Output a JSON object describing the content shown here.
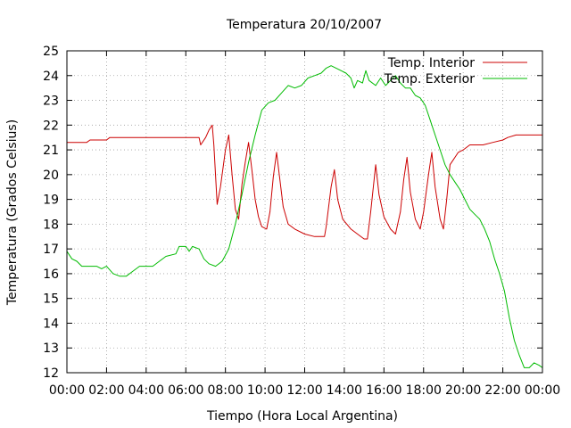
{
  "chart_data": {
    "type": "line",
    "title": "Temperatura 20/10/2007",
    "xlabel": "Tiempo (Hora Local Argentina)",
    "ylabel": "Temperatura (Grados Celsius)",
    "xlim": [
      "00:00",
      "24:00"
    ],
    "ylim": [
      12,
      25
    ],
    "grid": true,
    "legend_position": "top-right",
    "x_ticks": [
      "00:00",
      "02:00",
      "04:00",
      "06:00",
      "08:00",
      "10:00",
      "12:00",
      "14:00",
      "16:00",
      "18:00",
      "20:00",
      "22:00",
      "00:00"
    ],
    "y_ticks": [
      12,
      13,
      14,
      15,
      16,
      17,
      18,
      19,
      20,
      21,
      22,
      23,
      24,
      25
    ],
    "series": [
      {
        "name": "Temp. Interior",
        "color": "#cc0000",
        "points": [
          [
            "00:00",
            21.3
          ],
          [
            "01:00",
            21.3
          ],
          [
            "01:10",
            21.4
          ],
          [
            "02:00",
            21.4
          ],
          [
            "02:10",
            21.5
          ],
          [
            "04:00",
            21.5
          ],
          [
            "06:00",
            21.5
          ],
          [
            "06:40",
            21.5
          ],
          [
            "06:45",
            21.2
          ],
          [
            "07:00",
            21.5
          ],
          [
            "07:10",
            21.8
          ],
          [
            "07:20",
            22.0
          ],
          [
            "07:25",
            21.2
          ],
          [
            "07:35",
            18.8
          ],
          [
            "07:45",
            19.5
          ],
          [
            "08:00",
            21.0
          ],
          [
            "08:10",
            21.6
          ],
          [
            "08:20",
            20.0
          ],
          [
            "08:30",
            18.6
          ],
          [
            "08:40",
            18.2
          ],
          [
            "08:50",
            19.6
          ],
          [
            "09:00",
            20.5
          ],
          [
            "09:10",
            21.3
          ],
          [
            "09:20",
            20.2
          ],
          [
            "09:30",
            19.0
          ],
          [
            "09:40",
            18.3
          ],
          [
            "09:50",
            17.9
          ],
          [
            "10:05",
            17.8
          ],
          [
            "10:15",
            18.5
          ],
          [
            "10:25",
            19.9
          ],
          [
            "10:35",
            20.9
          ],
          [
            "10:45",
            19.8
          ],
          [
            "10:55",
            18.7
          ],
          [
            "11:10",
            18.0
          ],
          [
            "11:30",
            17.8
          ],
          [
            "12:00",
            17.6
          ],
          [
            "12:30",
            17.5
          ],
          [
            "13:00",
            17.5
          ],
          [
            "13:05",
            17.9
          ],
          [
            "13:20",
            19.5
          ],
          [
            "13:30",
            20.2
          ],
          [
            "13:40",
            19.0
          ],
          [
            "13:55",
            18.2
          ],
          [
            "14:20",
            17.8
          ],
          [
            "14:40",
            17.6
          ],
          [
            "15:00",
            17.4
          ],
          [
            "15:10",
            17.4
          ],
          [
            "15:20",
            18.5
          ],
          [
            "15:35",
            20.4
          ],
          [
            "15:45",
            19.2
          ],
          [
            "16:00",
            18.3
          ],
          [
            "16:20",
            17.8
          ],
          [
            "16:35",
            17.6
          ],
          [
            "16:50",
            18.5
          ],
          [
            "17:00",
            19.8
          ],
          [
            "17:10",
            20.7
          ],
          [
            "17:20",
            19.3
          ],
          [
            "17:35",
            18.2
          ],
          [
            "17:50",
            17.8
          ],
          [
            "18:00",
            18.5
          ],
          [
            "18:15",
            20.0
          ],
          [
            "18:25",
            20.9
          ],
          [
            "18:35",
            19.5
          ],
          [
            "18:50",
            18.2
          ],
          [
            "19:00",
            17.8
          ],
          [
            "19:10",
            19.0
          ],
          [
            "19:20",
            20.4
          ],
          [
            "19:30",
            20.6
          ],
          [
            "19:45",
            20.9
          ],
          [
            "20:00",
            21.0
          ],
          [
            "20:20",
            21.2
          ],
          [
            "21:00",
            21.2
          ],
          [
            "21:30",
            21.3
          ],
          [
            "22:00",
            21.4
          ],
          [
            "22:15",
            21.5
          ],
          [
            "22:40",
            21.6
          ],
          [
            "23:00",
            21.6
          ],
          [
            "24:00",
            21.6
          ]
        ]
      },
      {
        "name": "Temp. Exterior",
        "color": "#00bb00",
        "points": [
          [
            "00:00",
            16.9
          ],
          [
            "00:15",
            16.6
          ],
          [
            "00:30",
            16.5
          ],
          [
            "00:45",
            16.3
          ],
          [
            "01:30",
            16.3
          ],
          [
            "01:45",
            16.2
          ],
          [
            "02:00",
            16.3
          ],
          [
            "02:20",
            16.0
          ],
          [
            "02:40",
            15.9
          ],
          [
            "03:00",
            15.9
          ],
          [
            "03:20",
            16.1
          ],
          [
            "03:40",
            16.3
          ],
          [
            "04:20",
            16.3
          ],
          [
            "04:40",
            16.5
          ],
          [
            "05:00",
            16.7
          ],
          [
            "05:30",
            16.8
          ],
          [
            "05:40",
            17.1
          ],
          [
            "06:00",
            17.1
          ],
          [
            "06:10",
            16.9
          ],
          [
            "06:20",
            17.1
          ],
          [
            "06:40",
            17.0
          ],
          [
            "06:55",
            16.6
          ],
          [
            "07:10",
            16.4
          ],
          [
            "07:30",
            16.3
          ],
          [
            "07:50",
            16.5
          ],
          [
            "08:10",
            17.0
          ],
          [
            "08:30",
            18.0
          ],
          [
            "08:50",
            19.2
          ],
          [
            "09:10",
            20.5
          ],
          [
            "09:30",
            21.6
          ],
          [
            "09:50",
            22.6
          ],
          [
            "10:10",
            22.9
          ],
          [
            "10:30",
            23.0
          ],
          [
            "10:50",
            23.3
          ],
          [
            "11:10",
            23.6
          ],
          [
            "11:30",
            23.5
          ],
          [
            "11:50",
            23.6
          ],
          [
            "12:10",
            23.9
          ],
          [
            "12:30",
            24.0
          ],
          [
            "12:50",
            24.1
          ],
          [
            "13:05",
            24.3
          ],
          [
            "13:20",
            24.4
          ],
          [
            "13:35",
            24.3
          ],
          [
            "13:50",
            24.2
          ],
          [
            "14:05",
            24.1
          ],
          [
            "14:20",
            23.9
          ],
          [
            "14:30",
            23.5
          ],
          [
            "14:40",
            23.8
          ],
          [
            "14:55",
            23.7
          ],
          [
            "15:05",
            24.2
          ],
          [
            "15:15",
            23.8
          ],
          [
            "15:35",
            23.6
          ],
          [
            "15:50",
            23.9
          ],
          [
            "16:05",
            23.6
          ],
          [
            "16:20",
            23.8
          ],
          [
            "16:35",
            24.0
          ],
          [
            "16:50",
            23.7
          ],
          [
            "17:05",
            23.5
          ],
          [
            "17:20",
            23.5
          ],
          [
            "17:35",
            23.2
          ],
          [
            "17:50",
            23.1
          ],
          [
            "18:05",
            22.8
          ],
          [
            "18:20",
            22.2
          ],
          [
            "18:35",
            21.6
          ],
          [
            "18:50",
            21.0
          ],
          [
            "19:05",
            20.4
          ],
          [
            "19:20",
            20.0
          ],
          [
            "19:35",
            19.7
          ],
          [
            "19:50",
            19.4
          ],
          [
            "20:05",
            19.0
          ],
          [
            "20:20",
            18.6
          ],
          [
            "20:35",
            18.4
          ],
          [
            "20:50",
            18.2
          ],
          [
            "21:05",
            17.8
          ],
          [
            "21:20",
            17.3
          ],
          [
            "21:35",
            16.6
          ],
          [
            "21:50",
            16.0
          ],
          [
            "22:05",
            15.3
          ],
          [
            "22:20",
            14.2
          ],
          [
            "22:35",
            13.3
          ],
          [
            "22:50",
            12.7
          ],
          [
            "23:05",
            12.2
          ],
          [
            "23:20",
            12.2
          ],
          [
            "23:35",
            12.4
          ],
          [
            "23:50",
            12.3
          ],
          [
            "24:00",
            12.2
          ]
        ]
      }
    ]
  }
}
